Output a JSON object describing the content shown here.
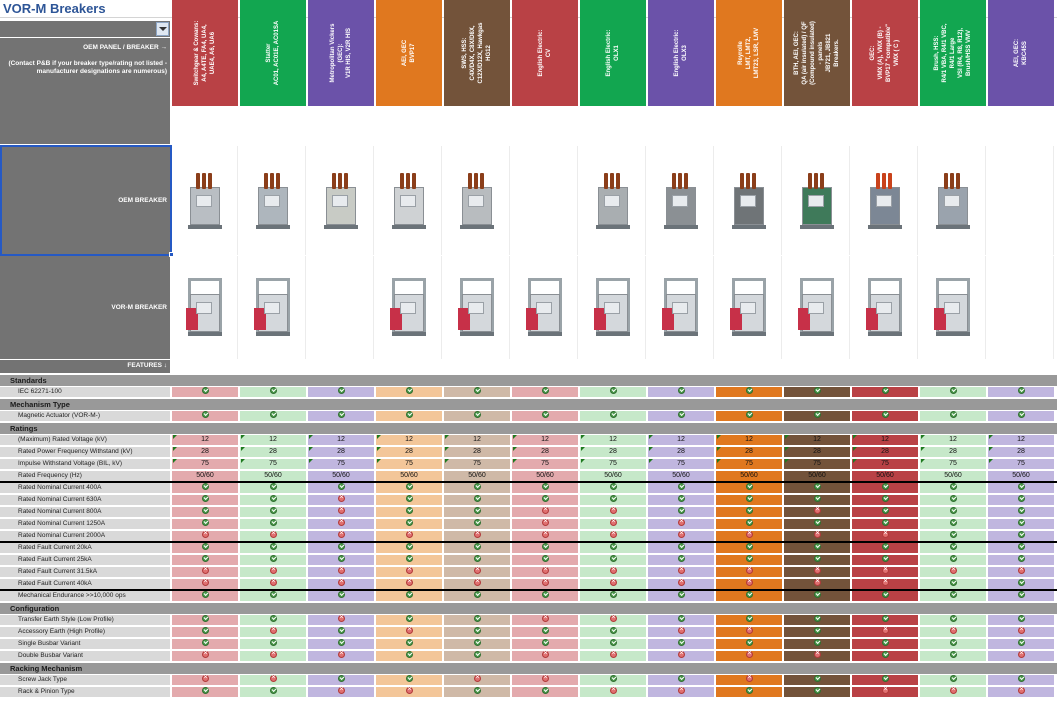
{
  "sheet": {
    "title": "VOR-M Breakers",
    "oem_panel_label": "OEM PANEL / BREAKER →",
    "oem_panel_note": "(Contact P&B if your breaker type/rating not listed - manufacturer designations are numerous)",
    "oem_breaker_label": "OEM BREAKER",
    "vorm_breaker_label": "VOR-M BREAKER",
    "features_label": "FEATURES ↓"
  },
  "colors": {
    "red": "#b94145",
    "green": "#12a650",
    "purple": "#6b52a9",
    "orange": "#e0781f",
    "brown": "#73533a",
    "light_red": "#e3aaad",
    "light_green": "#c6e8c9",
    "light_purple": "#c0b6df",
    "light_orange": "#f3c699",
    "light_brown": "#cfb9a7",
    "section_gray": "#999999",
    "label_gray": "#d9d9d9",
    "header_gray": "#737373",
    "title_blue": "#2d5597"
  },
  "columns": [
    {
      "code": "VOR-M-A4",
      "oem": "Switchgear & Cowans:\nA4, A4TE, FA4, UA4,\nUAE4, A6, UA6",
      "header_color": "#b94145",
      "cell_color": "#e3aaad",
      "has_oem_img": true,
      "has_vorm_img": true
    },
    {
      "code": "VOR-M-AC01",
      "oem": "Statter\nAC01, AC01E, AC01SA",
      "header_color": "#12a650",
      "cell_color": "#c6e8c9",
      "has_oem_img": true,
      "has_vorm_img": true
    },
    {
      "code": "VOR-M-MV40",
      "oem": "Metropolitan Vickers (GEC):\nV1R HIS, V2R HIS",
      "header_color": "#6b52a9",
      "cell_color": "#c0b6df",
      "has_oem_img": true,
      "has_vorm_img": false
    },
    {
      "code": "VOR-M-BVP",
      "oem": "AEI, GEC\nBVP17",
      "header_color": "#e0781f",
      "cell_color": "#f3c699",
      "has_oem_img": true,
      "has_vorm_img": true
    },
    {
      "code": "VOR-M-C4X",
      "oem": "SWS, HSS:\nC4X/D4X, C8X/D8X,\nC12X/D12X, Hawkgas HG12",
      "header_color": "#73533a",
      "cell_color": "#cfb9a7",
      "has_oem_img": true,
      "has_vorm_img": true
    },
    {
      "code": "VOR-M-CV",
      "oem": "English Electric:\nCV",
      "header_color": "#b94145",
      "cell_color": "#e3aaad",
      "has_oem_img": false,
      "has_vorm_img": true
    },
    {
      "code": "VOR-M-OLX1",
      "oem": "English Electric:\nOLX1",
      "header_color": "#12a650",
      "cell_color": "#c6e8c9",
      "has_oem_img": true,
      "has_vorm_img": true
    },
    {
      "code": "VOR-M-OLX3",
      "oem": "English Electric:\nOLX3",
      "header_color": "#6b52a9",
      "cell_color": "#c0b6df",
      "has_oem_img": true,
      "has_vorm_img": true
    },
    {
      "code": "VOR-M-LMT",
      "oem": "Reyrolle\nLMT, LMT2,\nLMT23, LSR, LMV",
      "header_color": "#e0781f",
      "cell_color": "#e0781f",
      "has_oem_img": true,
      "has_vorm_img": true
    },
    {
      "code": "VOR-M-QA/QF",
      "oem": "BTH, AEI, GEC:\nQA (air insulated) / QF\n(Compound insulated) - panels\nJB721, JB821 Breakers.",
      "header_color": "#73533a",
      "cell_color": "#73533a",
      "has_oem_img": true,
      "has_vorm_img": true
    },
    {
      "code": "VOR-M-VMX",
      "oem": "GEC:\nVMX (A), VMX (B) -\nBVP17 \"compatible\"\nVMX ( C )",
      "header_color": "#b94145",
      "cell_color": "#b94145",
      "has_oem_img": true,
      "has_vorm_img": true
    },
    {
      "code": "VOR-M-VSI",
      "oem": "Brush, HSS:\nR4/1 VBA, R4/1 VBC, R4/1 Large\nVSI (R4, R8, R12),\nBrush/HSS VMV",
      "header_color": "#12a650",
      "cell_color": "#c6e8c9",
      "has_oem_img": true,
      "has_vorm_img": true
    },
    {
      "code": "VOR-M-KBC",
      "oem": "AEI, GEC:\nKBC45S",
      "header_color": "#6b52a9",
      "cell_color": "#c0b6df",
      "has_oem_img": false,
      "has_vorm_img": false
    }
  ],
  "sections": [
    {
      "title": "Standards",
      "rows": [
        {
          "label": "IEC 62271-100",
          "values": [
            "Y",
            "Y",
            "Y",
            "Y",
            "Y",
            "Y",
            "Y",
            "Y",
            "Y",
            "Y",
            "Y",
            "Y",
            "Y"
          ]
        }
      ]
    },
    {
      "title": "Mechanism Type",
      "rows": [
        {
          "label": "Magnetic Actuator (VOR-M-)",
          "values": [
            "Y",
            "Y",
            "Y",
            "Y",
            "Y",
            "Y",
            "Y",
            "Y",
            "Y",
            "Y",
            "Y",
            "Y",
            "Y"
          ]
        }
      ]
    },
    {
      "title": "Ratings",
      "rows": [
        {
          "label": "(Maximum) Rated Voltage (kV)",
          "values": [
            "12",
            "12",
            "12",
            "12",
            "12",
            "12",
            "12",
            "12",
            "12",
            "12",
            "12",
            "12",
            "12"
          ],
          "marked": true
        },
        {
          "label": "Rated Power Frequency Withstand  (kV)",
          "values": [
            "28",
            "28",
            "28",
            "28",
            "28",
            "28",
            "28",
            "28",
            "28",
            "28",
            "28",
            "28",
            "28"
          ],
          "marked": true
        },
        {
          "label": "Impulse Withstand Voltage (BIL, kV)",
          "values": [
            "75",
            "75",
            "75",
            "75",
            "75",
            "75",
            "75",
            "75",
            "75",
            "75",
            "75",
            "75",
            "75"
          ],
          "marked": true
        },
        {
          "label": "Rated Frequency (Hz)",
          "values": [
            "50/60",
            "50/60",
            "50/60",
            "50/60",
            "50/60",
            "50/60",
            "50/60",
            "50/60",
            "50/60",
            "50/60",
            "50/60",
            "50/60",
            "50/60"
          ],
          "rule_after": true
        },
        {
          "label": "Rated Nominal Current 400A",
          "values": [
            "Y",
            "Y",
            "Y",
            "Y",
            "Y",
            "Y",
            "Y",
            "Y",
            "Y",
            "Y",
            "Y",
            "Y",
            "Y"
          ]
        },
        {
          "label": "Rated Nominal Current 630A",
          "values": [
            "Y",
            "Y",
            "N",
            "Y",
            "Y",
            "Y",
            "Y",
            "Y",
            "Y",
            "Y",
            "Y",
            "Y",
            "Y"
          ]
        },
        {
          "label": "Rated Nominal Current 800A",
          "values": [
            "Y",
            "Y",
            "N",
            "Y",
            "Y",
            "N",
            "N",
            "Y",
            "Y",
            "N",
            "Y",
            "Y",
            "Y"
          ]
        },
        {
          "label": "Rated Nominal Current 1250A",
          "values": [
            "Y",
            "Y",
            "N",
            "Y",
            "Y",
            "N",
            "N",
            "N",
            "Y",
            "Y",
            "Y",
            "Y",
            "Y"
          ]
        },
        {
          "label": "Rated Nominal Current 2000A",
          "values": [
            "N",
            "N",
            "N",
            "N",
            "N",
            "N",
            "N",
            "N",
            "N",
            "N",
            "N",
            "Y",
            "Y"
          ],
          "rule_after": true
        },
        {
          "label": "Rated Fault Current 20kA",
          "values": [
            "Y",
            "Y",
            "Y",
            "Y",
            "Y",
            "Y",
            "Y",
            "Y",
            "Y",
            "Y",
            "Y",
            "Y",
            "Y"
          ]
        },
        {
          "label": "Rated Fault Current 25kA",
          "values": [
            "Y",
            "Y",
            "Y",
            "Y",
            "Y",
            "Y",
            "Y",
            "Y",
            "Y",
            "Y",
            "Y",
            "Y",
            "Y"
          ]
        },
        {
          "label": "Rated Fault Current 31.5kA",
          "values": [
            "N",
            "N",
            "N",
            "N",
            "N",
            "N",
            "N",
            "N",
            "N",
            "N",
            "N",
            "N",
            "N"
          ]
        },
        {
          "label": "Rated Fault Current 40kA",
          "values": [
            "N",
            "N",
            "N",
            "N",
            "N",
            "N",
            "N",
            "N",
            "N",
            "N",
            "N",
            "Y",
            "Y"
          ],
          "rule_after": true
        },
        {
          "label": "Mechanical Endurance >>10,000 ops",
          "values": [
            "Y",
            "Y",
            "Y",
            "Y",
            "Y",
            "Y",
            "Y",
            "Y",
            "Y",
            "Y",
            "Y",
            "Y",
            "Y"
          ]
        }
      ]
    },
    {
      "title": "Configuration",
      "rows": [
        {
          "label": "Transfer Earth Style (Low Profile)",
          "values": [
            "Y",
            "Y",
            "N",
            "Y",
            "Y",
            "N",
            "N",
            "Y",
            "Y",
            "Y",
            "Y",
            "Y",
            "Y"
          ]
        },
        {
          "label": "Accessory Earth (High Profile)",
          "values": [
            "Y",
            "N",
            "Y",
            "N",
            "Y",
            "Y",
            "Y",
            "N",
            "N",
            "Y",
            "N",
            "N",
            "N"
          ]
        },
        {
          "label": "Single Busbar Variant",
          "values": [
            "Y",
            "Y",
            "Y",
            "Y",
            "Y",
            "Y",
            "Y",
            "Y",
            "Y",
            "Y",
            "Y",
            "Y",
            "Y"
          ]
        },
        {
          "label": "Double Busbar Variant",
          "values": [
            "N",
            "N",
            "N",
            "Y",
            "Y",
            "N",
            "N",
            "N",
            "N",
            "N",
            "Y",
            "Y",
            "N"
          ]
        }
      ]
    },
    {
      "title": "Racking Mechanism",
      "rows": [
        {
          "label": "Screw Jack Type",
          "values": [
            "N",
            "N",
            "Y",
            "Y",
            "N",
            "N",
            "Y",
            "Y",
            "N",
            "Y",
            "Y",
            "Y",
            "Y"
          ]
        },
        {
          "label": "Rack & Pinion Type",
          "values": [
            "Y",
            "Y",
            "N",
            "N",
            "Y",
            "Y",
            "N",
            "N",
            "Y",
            "Y",
            "N",
            "N",
            "N"
          ]
        }
      ]
    }
  ]
}
